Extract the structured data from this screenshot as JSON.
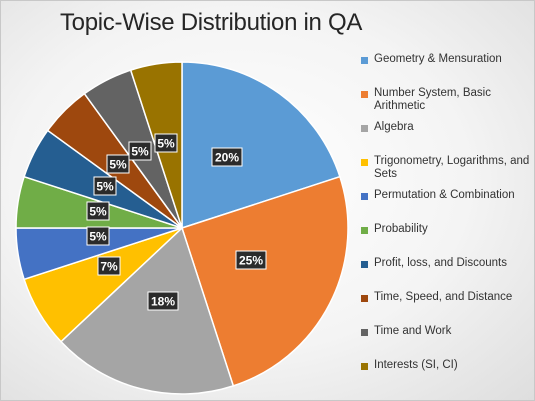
{
  "chart_data": {
    "type": "pie",
    "title": "Topic-Wise Distribution in QA",
    "legend_position": "right",
    "start_angle": "12 o'clock",
    "direction": "clockwise",
    "slices": [
      {
        "label": "Geometry & Mensuration",
        "value": 20,
        "value_label": "20%",
        "color": "#5B9BD5"
      },
      {
        "label": "Number System, Basic Arithmetic",
        "value": 25,
        "value_label": "25%",
        "color": "#ED7D31"
      },
      {
        "label": "Algebra",
        "value": 18,
        "value_label": "18%",
        "color": "#A5A5A5"
      },
      {
        "label": "Trigonometry, Logarithms, and Sets",
        "value": 7,
        "value_label": "7%",
        "color": "#FFC000"
      },
      {
        "label": "Permutation & Combination",
        "value": 5,
        "value_label": "5%",
        "color": "#4472C4"
      },
      {
        "label": "Probability",
        "value": 5,
        "value_label": "5%",
        "color": "#70AD47"
      },
      {
        "label": "Profit, loss, and Discounts",
        "value": 5,
        "value_label": "5%",
        "color": "#255E91"
      },
      {
        "label": "Time, Speed, and Distance",
        "value": 5,
        "value_label": "5%",
        "color": "#9E480E"
      },
      {
        "label": "Time and Work",
        "value": 5,
        "value_label": "5%",
        "color": "#636363"
      },
      {
        "label": "Interests (SI, CI)",
        "value": 5,
        "value_label": "5%",
        "color": "#997300"
      }
    ]
  }
}
